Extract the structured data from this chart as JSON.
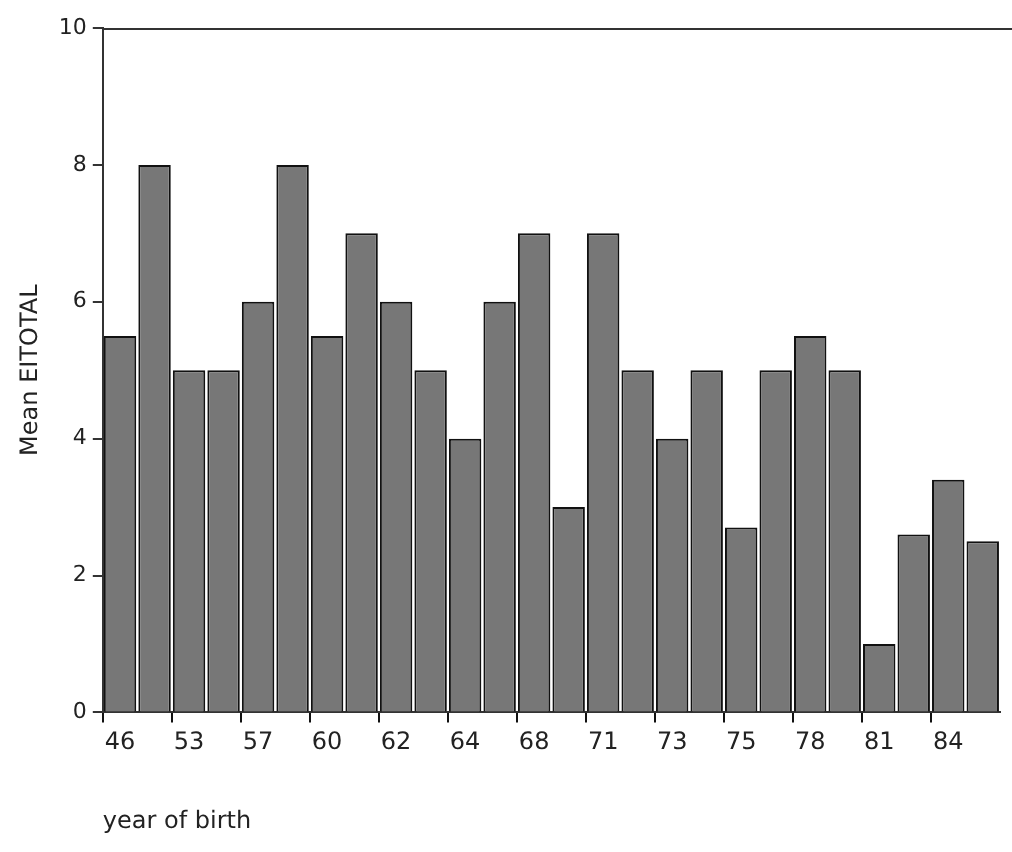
{
  "chart_data": {
    "type": "bar",
    "xlabel": "year of birth",
    "ylabel": "Mean EITOTAL",
    "categories": [
      "46",
      null,
      "53",
      null,
      "57",
      null,
      "60",
      null,
      "62",
      null,
      "64",
      null,
      "68",
      null,
      "71",
      null,
      "73",
      null,
      "75",
      null,
      "78",
      null,
      "81",
      null,
      "84",
      null
    ],
    "values": [
      5.5,
      8,
      5,
      5,
      6,
      8,
      5.5,
      7,
      6,
      5,
      4,
      6,
      7,
      3,
      7,
      5,
      4,
      5,
      2.7,
      5,
      5.5,
      5,
      1,
      2.6,
      3.4,
      2.5
    ],
    "color": "#777777",
    "ylim": [
      0,
      10
    ],
    "yticks": [
      0,
      2,
      4,
      6,
      8,
      10
    ],
    "grid": false,
    "legend": false
  }
}
